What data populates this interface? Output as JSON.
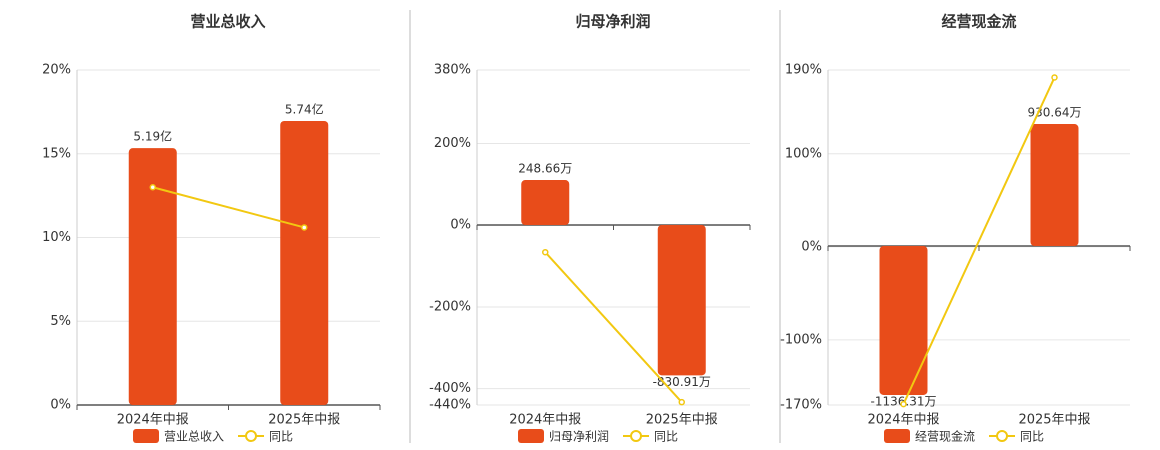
{
  "chart_data": [
    {
      "type": "bar",
      "title": "营业总收入",
      "categories": [
        "2024年中报",
        "2025年中报"
      ],
      "series": [
        {
          "name": "营业总收入",
          "color": "#e84c1a",
          "axis": "y2",
          "values": [
            5.19,
            5.74
          ],
          "value_labels": [
            "5.19亿",
            "5.74亿"
          ]
        },
        {
          "name": "同比",
          "type": "line",
          "color": "#f2c811",
          "values": [
            13.0,
            10.6
          ]
        }
      ],
      "ylim": [
        0,
        20
      ],
      "yticks": [
        {
          "value": 0,
          "label": "0%"
        },
        {
          "value": 5,
          "label": "5%"
        },
        {
          "value": 10,
          "label": "10%"
        },
        {
          "value": 15,
          "label": "15%"
        },
        {
          "value": 20,
          "label": "20%"
        }
      ],
      "y2lim": [
        0,
        6.77
      ],
      "grid": true
    },
    {
      "type": "bar",
      "title": "归母净利润",
      "categories": [
        "2024年中报",
        "2025年中报"
      ],
      "series": [
        {
          "name": "归母净利润",
          "color": "#e84c1a",
          "axis": "y2",
          "values": [
            248.66,
            -830.91
          ],
          "value_labels": [
            "248.66万",
            "-830.91万"
          ]
        },
        {
          "name": "同比",
          "type": "line",
          "color": "#f2c811",
          "values": [
            -66,
            -433
          ]
        }
      ],
      "ylim": [
        -440,
        380
      ],
      "yticks": [
        {
          "value": -440,
          "label": "-440%"
        },
        {
          "value": -400,
          "label": "-400%"
        },
        {
          "value": -200,
          "label": "-200%"
        },
        {
          "value": 0,
          "label": "0%"
        },
        {
          "value": 200,
          "label": "200%"
        },
        {
          "value": 380,
          "label": "380%"
        }
      ],
      "y2lim": [
        -995,
        857
      ],
      "grid": true
    },
    {
      "type": "bar",
      "title": "经营现金流",
      "categories": [
        "2024年中报",
        "2025年中报"
      ],
      "series": [
        {
          "name": "经营现金流",
          "color": "#e84c1a",
          "axis": "y2",
          "values": [
            -1136.31,
            930.64
          ],
          "value_labels": [
            "-1136.31万",
            "930.64万"
          ]
        },
        {
          "name": "同比",
          "type": "line",
          "color": "#f2c811",
          "values": [
            -169,
            182
          ]
        }
      ],
      "ylim": [
        -170,
        190
      ],
      "yticks": [
        {
          "value": -170,
          "label": "-170%"
        },
        {
          "value": -100,
          "label": "-100%"
        },
        {
          "value": 0,
          "label": "0%"
        },
        {
          "value": 100,
          "label": "100%"
        },
        {
          "value": 190,
          "label": "190%"
        }
      ],
      "y2lim": [
        -1213,
        1343
      ],
      "grid": true
    }
  ]
}
